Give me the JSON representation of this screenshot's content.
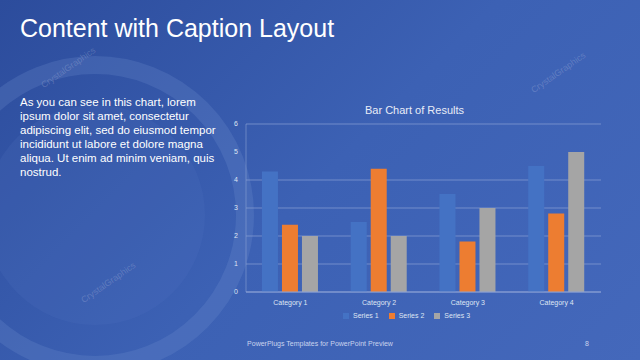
{
  "slide": {
    "title": "Content with Caption Layout",
    "caption": "As you can see in this chart, lorem ipsum dolor sit amet, consectetur adipiscing elit, sed do eiusmod tempor incididunt ut labore et dolore magna aliqua. Ut enim ad minim veniam, quis nostrud.",
    "footer": "PowerPlugs Templates for PowerPoint Preview",
    "page": "8",
    "watermark": "CrystalGraphics"
  },
  "chart_data": {
    "type": "bar",
    "title": "Bar Chart of Results",
    "categories": [
      "Category 1",
      "Category 2",
      "Category 3",
      "Category 4"
    ],
    "series": [
      {
        "name": "Series 1",
        "color": "#4472c4",
        "values": [
          4.3,
          2.5,
          3.5,
          4.5
        ]
      },
      {
        "name": "Series 2",
        "color": "#ed7d31",
        "values": [
          2.4,
          4.4,
          1.8,
          2.8
        ]
      },
      {
        "name": "Series 3",
        "color": "#a5a5a5",
        "values": [
          2,
          2,
          3,
          5
        ]
      }
    ],
    "ylim": [
      0,
      6
    ],
    "yticks": [
      0,
      1,
      2,
      3,
      4,
      5,
      6
    ],
    "grid": true,
    "legend": "bottom"
  }
}
